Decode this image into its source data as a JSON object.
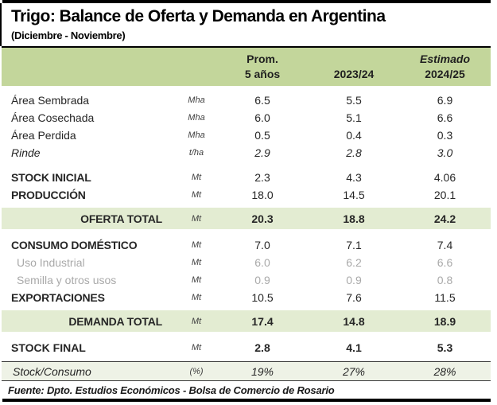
{
  "colors": {
    "header_green": "#c3d69b",
    "total_green": "#e3ecd2",
    "ratio_bg": "#eef2e6",
    "rule_black": "#000000",
    "text": "#262626",
    "gray_text": "#a9a9a9"
  },
  "chart_data": {
    "type": "table",
    "title": "Trigo: Balance de Oferta y Demanda en Argentina",
    "subtitle": "(Diciembre - Noviembre)",
    "source": "Fuente: Dpto. Estudios Económicos - Bolsa de Comercio de Rosario",
    "columns": [
      "Prom. 5 años",
      "2023/24",
      "Estimado 2024/25"
    ],
    "col_headers": {
      "avg_top": "Prom.",
      "avg_bottom": "5 años",
      "y1": "2023/24",
      "est_top": "Estimado",
      "est_bottom": "2024/25"
    },
    "rows": [
      {
        "label": "Área Sembrada",
        "unit": "Mha",
        "values": [
          "6.5",
          "5.5",
          "6.9"
        ],
        "style": "normal",
        "gap": 0
      },
      {
        "label": "Área Cosechada",
        "unit": "Mha",
        "values": [
          "6.0",
          "5.1",
          "6.6"
        ],
        "style": "normal",
        "gap": 0
      },
      {
        "label": "Área Perdida",
        "unit": "Mha",
        "values": [
          "0.5",
          "0.4",
          "0.3"
        ],
        "style": "normal",
        "gap": 0
      },
      {
        "label": "Rinde",
        "unit": "t/ha",
        "values": [
          "2.9",
          "2.8",
          "3.0"
        ],
        "style": "italic",
        "gap": 0
      },
      {
        "label": "STOCK INICIAL",
        "unit": "Mt",
        "values": [
          "2.3",
          "4.3",
          "4.06"
        ],
        "style": "bold-label",
        "gap": 9
      },
      {
        "label": "PRODUCCIÓN",
        "unit": "Mt",
        "values": [
          "18.0",
          "14.5",
          "20.1"
        ],
        "style": "bold-label",
        "gap": 0
      },
      {
        "label": "OFERTA TOTAL",
        "unit": "Mt",
        "values": [
          "20.3",
          "18.8",
          "24.2"
        ],
        "style": "total",
        "gap": 5
      },
      {
        "label": "CONSUMO DOMÉSTICO",
        "unit": "Mt",
        "values": [
          "7.0",
          "7.1",
          "7.4"
        ],
        "style": "bold-label",
        "gap": 9
      },
      {
        "label": "Uso Industrial",
        "unit": "Mt",
        "values": [
          "6.0",
          "6.2",
          "6.6"
        ],
        "style": "gray",
        "gap": 0
      },
      {
        "label": "Semilla y otros usos",
        "unit": "Mt",
        "values": [
          "0.9",
          "0.9",
          "0.8"
        ],
        "style": "gray",
        "gap": 0
      },
      {
        "label": "EXPORTACIONES",
        "unit": "Mt",
        "values": [
          "10.5",
          "7.6",
          "11.5"
        ],
        "style": "bold-label",
        "gap": 0
      },
      {
        "label": "DEMANDA TOTAL",
        "unit": "Mt",
        "values": [
          "17.4",
          "14.8",
          "18.9"
        ],
        "style": "total",
        "gap": 5
      },
      {
        "label": "STOCK FINAL",
        "unit": "Mt",
        "values": [
          "2.8",
          "4.1",
          "5.3"
        ],
        "style": "bold-all",
        "gap": 9
      },
      {
        "label": "Stock/Consumo",
        "unit": "(%)",
        "values": [
          "19%",
          "27%",
          "28%"
        ],
        "style": "ratio",
        "gap": 6
      }
    ]
  }
}
